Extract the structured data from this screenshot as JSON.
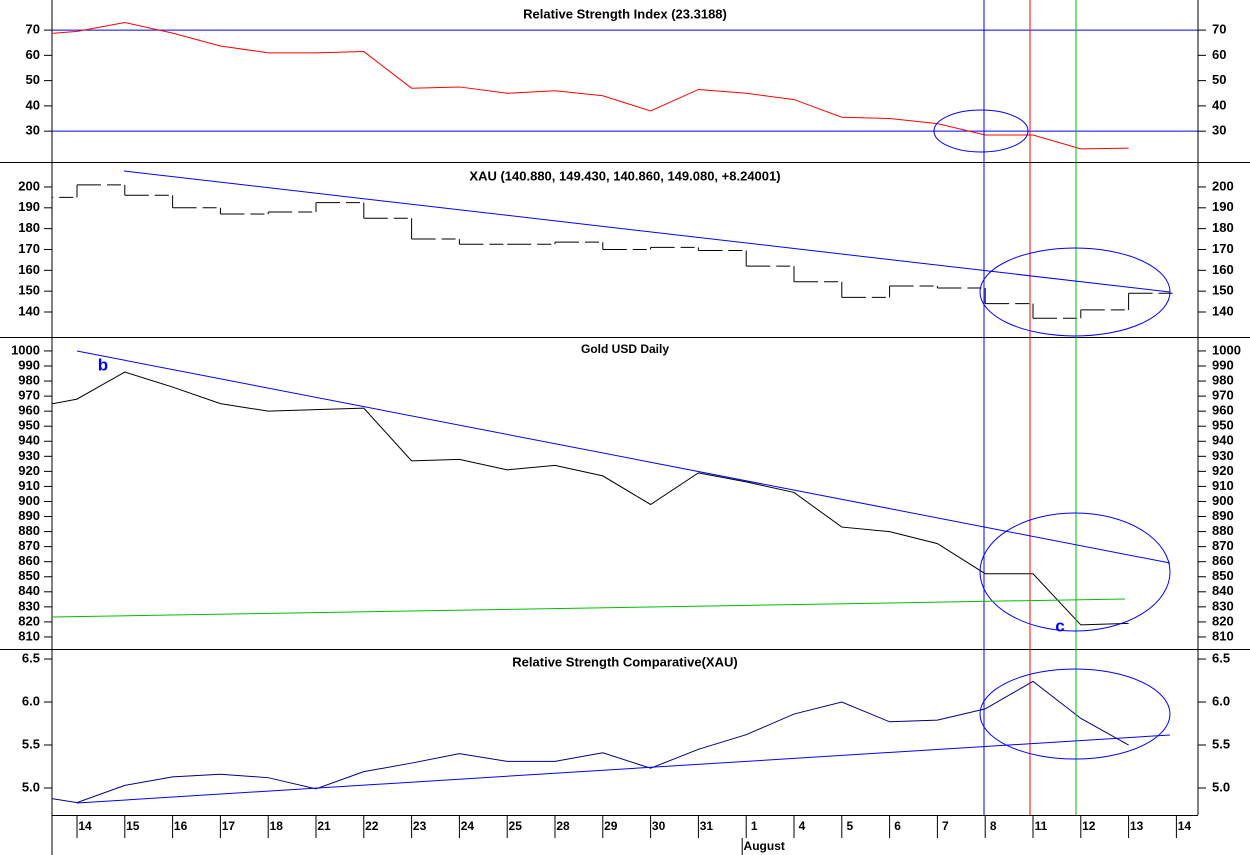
{
  "chart_data": [
    {
      "type": "line",
      "title": "Relative Strength Index (23.3188)",
      "color": "#ff0000",
      "values": [
        68,
        69.5,
        73,
        68.8,
        63.7,
        61,
        61,
        61.5,
        47,
        47.5,
        45,
        46,
        44,
        38,
        46.5,
        45,
        42.5,
        35.5,
        35,
        33,
        28.5,
        28.5,
        23,
        23.3,
        null
      ],
      "reference_lines": [
        70,
        30
      ],
      "reference_color": "#0000ff",
      "ylim": [
        17.8,
        81.9
      ],
      "yticks": [
        30,
        40,
        50,
        60,
        70
      ]
    },
    {
      "type": "step",
      "title": "XAU (140.880, 149.430, 140.860, 149.080, +8.24001)",
      "color": "#000000",
      "values": [
        195,
        201,
        196,
        190,
        187,
        188,
        192.5,
        185,
        175,
        172.5,
        172.5,
        173.5,
        170,
        171,
        169.5,
        162,
        154.5,
        147,
        152.5,
        151.5,
        144,
        137,
        141,
        149,
        null
      ],
      "ylim": [
        128,
        211.5
      ],
      "yticks": [
        140,
        150,
        160,
        170,
        180,
        190,
        200
      ]
    },
    {
      "type": "line",
      "title": "Gold USD Daily",
      "color": "#000000",
      "values": [
        962,
        968,
        986,
        976,
        965,
        960,
        961,
        962,
        927,
        928,
        921,
        924,
        917,
        898,
        919,
        913,
        906,
        883,
        880,
        872,
        852,
        852,
        818,
        819,
        null
      ],
      "annotations": [
        "b",
        "c"
      ],
      "ylim": [
        802,
        1008.6
      ],
      "yticks": [
        810,
        820,
        830,
        840,
        850,
        860,
        870,
        880,
        890,
        900,
        910,
        920,
        930,
        940,
        950,
        960,
        970,
        980,
        990,
        1000
      ]
    },
    {
      "type": "line",
      "title": "Relative Strength Comparative(XAU)",
      "color": "#000080",
      "values": [
        4.92,
        4.83,
        5.03,
        5.13,
        5.16,
        5.12,
        4.99,
        5.19,
        5.29,
        5.4,
        5.31,
        5.31,
        5.41,
        5.23,
        5.45,
        5.62,
        5.86,
        6.0,
        5.77,
        5.79,
        5.92,
        6.24,
        5.81,
        5.5,
        null
      ],
      "ylim": [
        4.686,
        6.605
      ],
      "yticks": [
        {
          "value": 5,
          "label": "5.0"
        },
        5.5,
        {
          "value": 6,
          "label": "6.0"
        },
        6.5
      ],
      "categories": [
        null,
        "14",
        "15",
        "16",
        "17",
        "18",
        "21",
        "22",
        "23",
        "24",
        "25",
        "28",
        "29",
        "30",
        "31",
        "1",
        "4",
        "5",
        "6",
        "7",
        "8",
        "11",
        "12",
        "13",
        "14"
      ],
      "x_group_label": "August"
    }
  ]
}
